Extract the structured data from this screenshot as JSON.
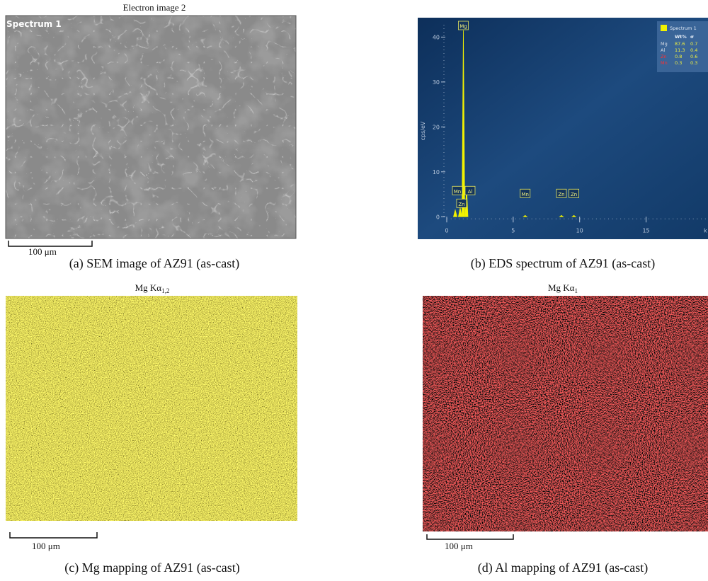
{
  "panels": [
    {
      "title": "Electron image 2",
      "overlay_label": "Spectrum 1",
      "scale_bar": "100 μm",
      "caption": "(a) SEM image of AZ91 (as-cast)"
    },
    {
      "caption": "(b) EDS spectrum of AZ91 (as-cast)",
      "spectrum": {
        "y_label": "cps/eV",
        "x_label": "k",
        "xlim": [
          0,
          19.5
        ],
        "ylim": [
          -5,
          44
        ],
        "xticks": [
          0,
          5,
          10,
          15
        ],
        "yticks": [
          0,
          10,
          20,
          30,
          40
        ],
        "color": "#f2f200",
        "peaks": [
          {
            "label": "Mg",
            "x": 1.25,
            "height": 41.5
          },
          {
            "label": "Al",
            "x": 1.49,
            "height": 6.5
          },
          {
            "label": "Mn",
            "x": 0.64,
            "height": 1.5
          },
          {
            "label": "Zn",
            "x": 1.01,
            "height": 2
          },
          {
            "label": "Mn",
            "x": 5.9,
            "height": 0.3
          },
          {
            "label": "Zn",
            "x": 8.63,
            "height": 0.3
          },
          {
            "label": "Zn",
            "x": 9.57,
            "height": 0.3
          }
        ],
        "legend": {
          "title": "Spectrum 1",
          "columns": [
            "Wt%",
            "σ"
          ],
          "rows": [
            [
              "Mg",
              "87.6",
              "0.7"
            ],
            [
              "Al",
              "11.3",
              "0.4"
            ],
            [
              "Zn",
              "0.8",
              "0.6"
            ],
            [
              "Mn",
              "0.3",
              "0.3"
            ]
          ]
        }
      }
    },
    {
      "title": {
        "text": "Mg Kα",
        "subscript": "1,2"
      },
      "scale_bar": "100 μm",
      "caption": "(c) Mg mapping of AZ91 (as-cast)"
    },
    {
      "title": {
        "text": "Mg Kα",
        "subscript": "1"
      },
      "scale_bar": "100 μm",
      "caption": "(d) Al mapping of AZ91 (as-cast)"
    }
  ]
}
